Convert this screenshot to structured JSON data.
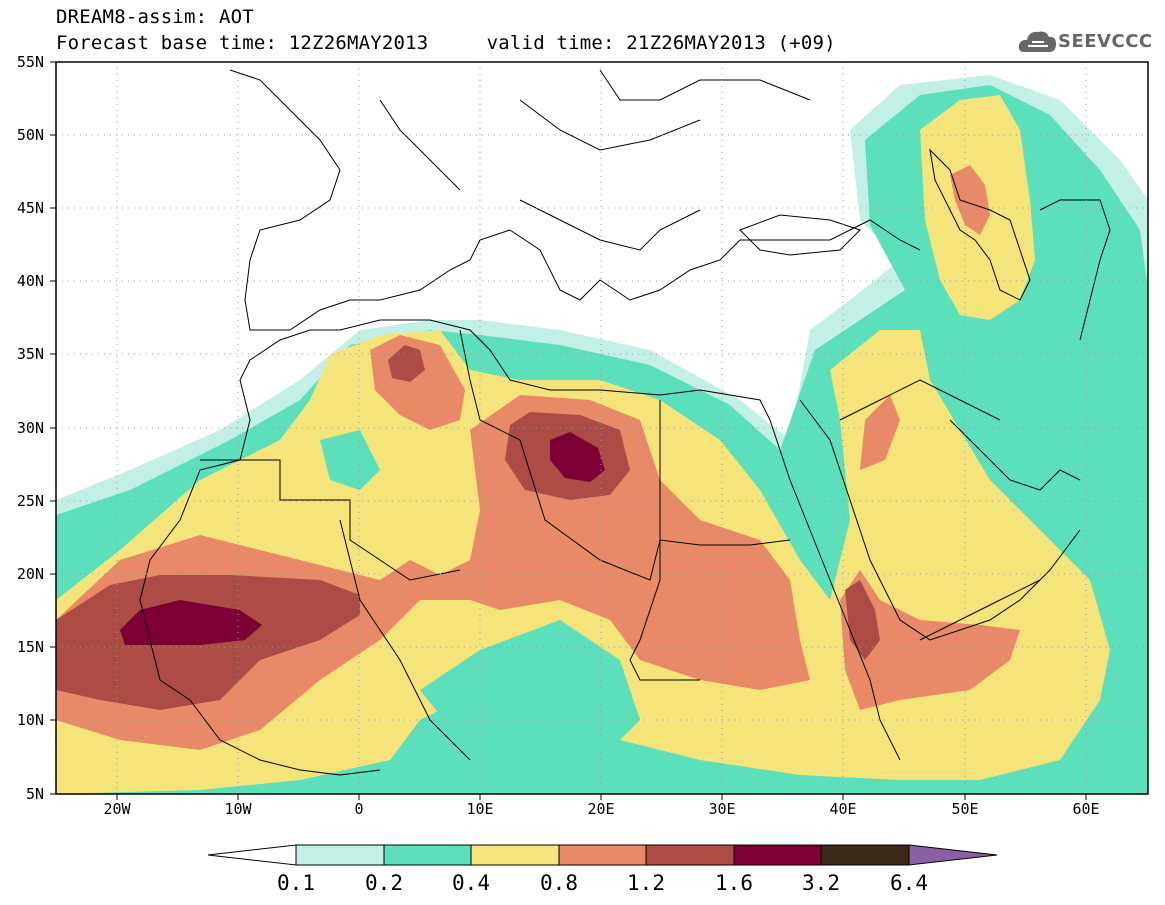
{
  "header": {
    "title": "DREAM8-assim: AOT",
    "subtitle": "Forecast base time: 12Z26MAY2013     valid time: 21Z26MAY2013 (+09)",
    "logo_text": "SEEVCCC"
  },
  "map": {
    "lat_labels": [
      "55N",
      "50N",
      "45N",
      "40N",
      "35N",
      "30N",
      "25N",
      "20N",
      "15N",
      "10N",
      "5N"
    ],
    "lon_labels": [
      "20W",
      "10W",
      "0",
      "10E",
      "20E",
      "30E",
      "40E",
      "50E",
      "60E"
    ],
    "lat_range": [
      5,
      55
    ],
    "lon_range": [
      -25,
      65
    ]
  },
  "legend": {
    "levels": [
      "0.1",
      "0.2",
      "0.4",
      "0.8",
      "1.2",
      "1.6",
      "3.2",
      "6.4"
    ],
    "colors": [
      "#ffffff",
      "#c2efe6",
      "#5ce0bc",
      "#f5e479",
      "#e88a68",
      "#ad4c44",
      "#7c0034",
      "#3b2a1a",
      "#8a5fa4"
    ]
  },
  "colors": {
    "aot_0_1": "#c2efe6",
    "aot_0_2": "#5ce0bc",
    "aot_0_4": "#f5e479",
    "aot_0_8": "#e88a68",
    "aot_1_2": "#ad4c44",
    "aot_1_6": "#7c0034"
  }
}
